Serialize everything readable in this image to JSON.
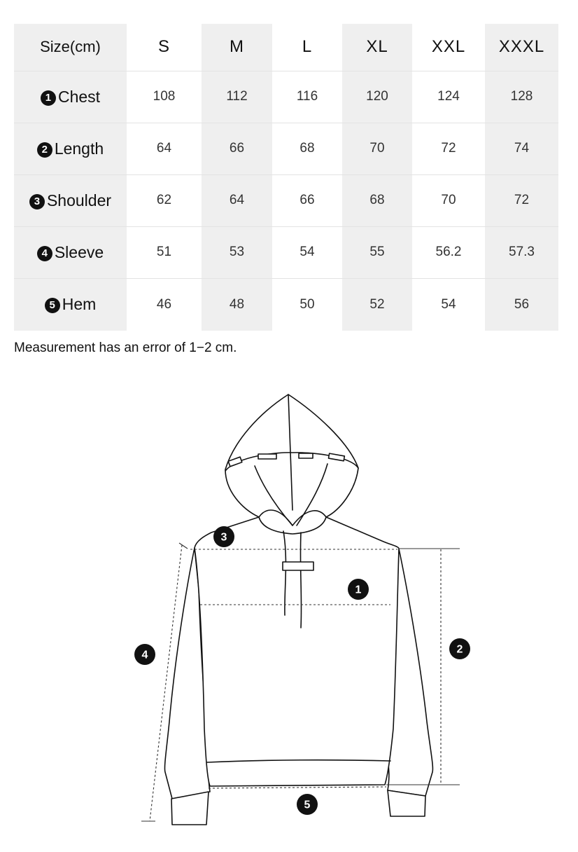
{
  "table": {
    "header_label": "Size(cm)",
    "sizes": [
      "S",
      "M",
      "L",
      "XL",
      "XXL",
      "XXXL"
    ],
    "rows": [
      {
        "marker": "1",
        "label": "Chest",
        "values": [
          "108",
          "112",
          "116",
          "120",
          "124",
          "128"
        ]
      },
      {
        "marker": "2",
        "label": "Length",
        "values": [
          "64",
          "66",
          "68",
          "70",
          "72",
          "74"
        ]
      },
      {
        "marker": "3",
        "label": "Shoulder",
        "values": [
          "62",
          "64",
          "66",
          "68",
          "70",
          "72"
        ]
      },
      {
        "marker": "4",
        "label": "Sleeve",
        "values": [
          "51",
          "53",
          "54",
          "55",
          "56.2",
          "57.3"
        ]
      },
      {
        "marker": "5",
        "label": "Hem",
        "values": [
          "46",
          "48",
          "50",
          "52",
          "54",
          "56"
        ]
      }
    ]
  },
  "note": "Measurement has an error of 1−2 cm.",
  "diagram": {
    "markers": {
      "chest": "1",
      "length": "2",
      "shoulder": "3",
      "sleeve": "4",
      "hem": "5"
    }
  }
}
